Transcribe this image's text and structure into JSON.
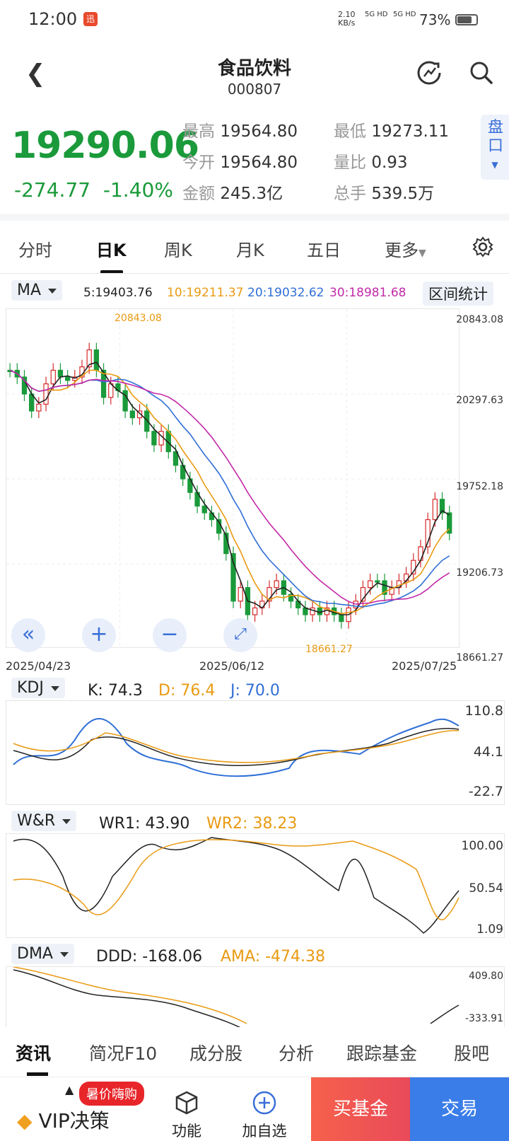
{
  "status": {
    "time": "12:00",
    "net_speed": "2.10",
    "net_unit": "KB/s",
    "sig1": "5G HD",
    "sig2": "5G HD",
    "battery": "73%"
  },
  "header": {
    "title": "食品饮料",
    "code": "000807"
  },
  "quote": {
    "price": "19290.06",
    "change": "-274.77",
    "change_pct": "-1.40%",
    "high_label": "最高",
    "high": "19564.80",
    "low_label": "最低",
    "low": "19273.11",
    "open_label": "今开",
    "open": "19564.80",
    "vol_ratio_label": "量比",
    "vol_ratio": "0.93",
    "amount_label": "金额",
    "amount": "245.3亿",
    "turnover_label": "总手",
    "turnover": "539.5万",
    "pankou": "盘口",
    "down_color": "#1a9a3a"
  },
  "tabs": [
    "分时",
    "日K",
    "周K",
    "月K",
    "五日",
    "更多"
  ],
  "ma": {
    "selector": "MA",
    "ma5": "5:19403.76",
    "ma10": "10:19211.37",
    "ma20": "20:19032.62",
    "ma30": "30:18981.68",
    "range_stats": "区间统计",
    "colors": {
      "ma5": "#222222",
      "ma10": "#e99a12",
      "ma20": "#2f6fd6",
      "ma30": "#c22aa8"
    }
  },
  "chart": {
    "y_ticks": [
      "20843.08",
      "20297.63",
      "19752.18",
      "19206.73",
      "18661.27"
    ],
    "x_ticks": [
      "2025/04/23",
      "2025/06/12",
      "2025/07/25"
    ],
    "max_label": "20843.08",
    "min_label": "18661.27",
    "buttons": {
      "left": "«",
      "plus": "+",
      "minus": "−"
    }
  },
  "chart_data": {
    "type": "candlestick",
    "x_range": [
      "2025/04/23",
      "2025/07/25"
    ],
    "ylim": [
      18661.27,
      20843.08
    ],
    "high": 20843.08,
    "low": 18661.27,
    "ma_series": [
      {
        "name": "5",
        "last": 19403.76
      },
      {
        "name": "10",
        "last": 19211.37
      },
      {
        "name": "20",
        "last": 19032.62
      },
      {
        "name": "30",
        "last": 18981.68
      }
    ]
  },
  "kdj": {
    "selector": "KDJ",
    "k": "K: 74.3",
    "d": "D: 76.4",
    "j": "J: 70.0",
    "ticks": [
      "110.8",
      "44.1",
      "-22.7"
    ]
  },
  "wr": {
    "selector": "W&R",
    "wr1": "WR1: 43.90",
    "wr2": "WR2: 38.23",
    "ticks": [
      "100.00",
      "50.54",
      "1.09"
    ]
  },
  "dma": {
    "selector": "DMA",
    "ddd": "DDD: -168.06",
    "ama": "AMA: -474.38",
    "ticks": [
      "409.80",
      "-333.91"
    ]
  },
  "bottom_tabs": [
    "资讯",
    "简况F10",
    "成分股",
    "分析",
    "跟踪基金",
    "股吧"
  ],
  "actions": {
    "vip": "VIP决策",
    "vip_badge": "暑价嗨购",
    "func": "功能",
    "add": "加自选",
    "buy": "买基金",
    "trade": "交易"
  }
}
